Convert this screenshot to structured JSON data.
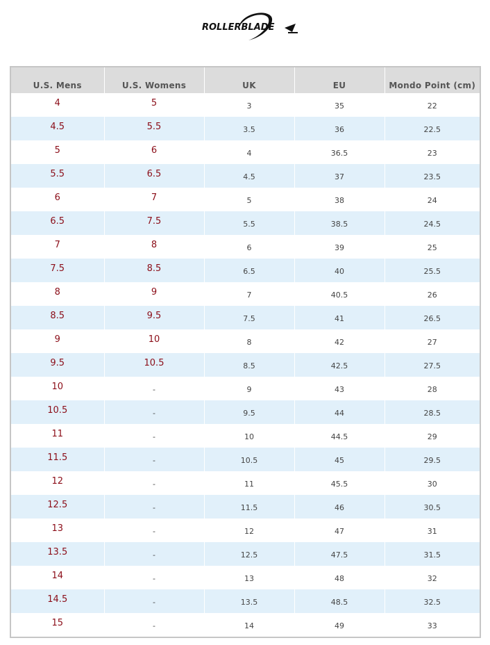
{
  "brand": {
    "logo_text": "ROLLERBLADE"
  },
  "table": {
    "headers": [
      "U.S. Mens",
      "U.S. Womens",
      "UK",
      "EU",
      "Mondo Point (cm)"
    ],
    "rows": [
      [
        "4",
        "5",
        "3",
        "35",
        "22"
      ],
      [
        "4.5",
        "5.5",
        "3.5",
        "36",
        "22.5"
      ],
      [
        "5",
        "6",
        "4",
        "36.5",
        "23"
      ],
      [
        "5.5",
        "6.5",
        "4.5",
        "37",
        "23.5"
      ],
      [
        "6",
        "7",
        "5",
        "38",
        "24"
      ],
      [
        "6.5",
        "7.5",
        "5.5",
        "38.5",
        "24.5"
      ],
      [
        "7",
        "8",
        "6",
        "39",
        "25"
      ],
      [
        "7.5",
        "8.5",
        "6.5",
        "40",
        "25.5"
      ],
      [
        "8",
        "9",
        "7",
        "40.5",
        "26"
      ],
      [
        "8.5",
        "9.5",
        "7.5",
        "41",
        "26.5"
      ],
      [
        "9",
        "10",
        "8",
        "42",
        "27"
      ],
      [
        "9.5",
        "10.5",
        "8.5",
        "42.5",
        "27.5"
      ],
      [
        "10",
        "-",
        "9",
        "43",
        "28"
      ],
      [
        "10.5",
        "-",
        "9.5",
        "44",
        "28.5"
      ],
      [
        "11",
        "-",
        "10",
        "44.5",
        "29"
      ],
      [
        "11.5",
        "-",
        "10.5",
        "45",
        "29.5"
      ],
      [
        "12",
        "-",
        "11",
        "45.5",
        "30"
      ],
      [
        "12.5",
        "-",
        "11.5",
        "46",
        "30.5"
      ],
      [
        "13",
        "-",
        "12",
        "47",
        "31"
      ],
      [
        "13.5",
        "-",
        "12.5",
        "47.5",
        "31.5"
      ],
      [
        "14",
        "-",
        "13",
        "48",
        "32"
      ],
      [
        "14.5",
        "-",
        "13.5",
        "48.5",
        "32.5"
      ],
      [
        "15",
        "-",
        "14",
        "49",
        "33"
      ]
    ]
  }
}
